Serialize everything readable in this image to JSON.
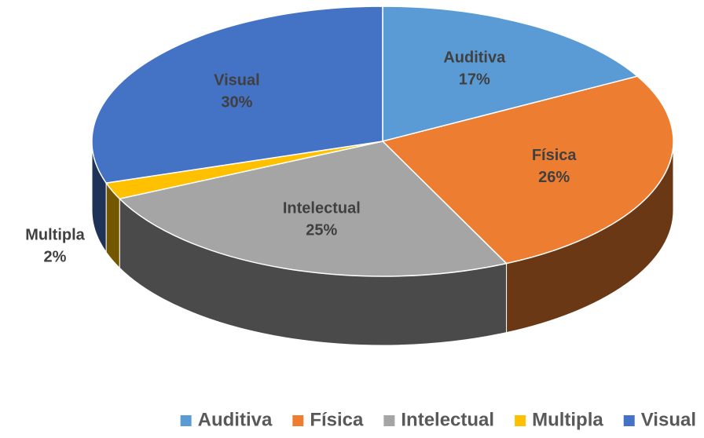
{
  "chart_data": {
    "type": "pie",
    "categories": [
      "Auditiva",
      "Física",
      "Intelectual",
      "Multipla",
      "Visual"
    ],
    "values": [
      17,
      26,
      25,
      2,
      30
    ],
    "value_labels": [
      "17%",
      "26%",
      "25%",
      "2%",
      "30%"
    ],
    "colors": [
      "#5b9bd5",
      "#ed7d31",
      "#a5a5a5",
      "#ffc000",
      "#4472c4"
    ],
    "legend": "bottom"
  }
}
